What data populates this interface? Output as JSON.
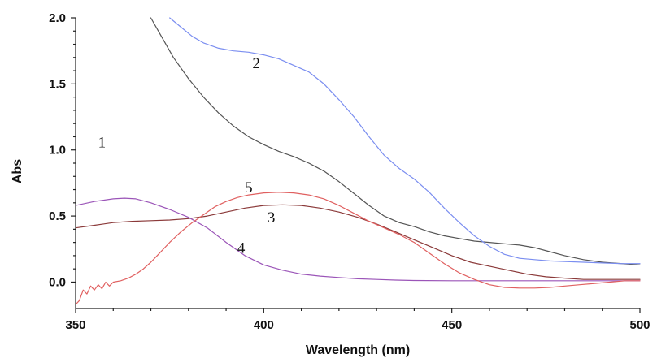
{
  "chart_data": {
    "type": "line",
    "title": "",
    "xlabel": "Wavelength (nm)",
    "ylabel": "Abs",
    "xlim": [
      350,
      500
    ],
    "ylim": [
      -0.2,
      2.0
    ],
    "x_ticks": [
      350,
      400,
      450,
      500
    ],
    "x_tick_labels": [
      "350",
      "400",
      "450",
      "500"
    ],
    "y_ticks": [
      0.0,
      0.5,
      1.0,
      1.5,
      2.0
    ],
    "y_tick_labels": [
      "0.0",
      "0.5",
      "1.0",
      "1.5",
      "2.0"
    ],
    "grid": false,
    "series": [
      {
        "name": "1",
        "color": "#555555",
        "label_at": [
          357,
          1.02
        ],
        "points": [
          [
            370,
            2.0
          ],
          [
            373,
            1.85
          ],
          [
            376,
            1.7
          ],
          [
            380,
            1.54
          ],
          [
            384,
            1.4
          ],
          [
            388,
            1.28
          ],
          [
            392,
            1.18
          ],
          [
            396,
            1.1
          ],
          [
            400,
            1.04
          ],
          [
            404,
            0.99
          ],
          [
            408,
            0.95
          ],
          [
            412,
            0.9
          ],
          [
            416,
            0.84
          ],
          [
            420,
            0.76
          ],
          [
            424,
            0.67
          ],
          [
            428,
            0.58
          ],
          [
            432,
            0.5
          ],
          [
            436,
            0.45
          ],
          [
            440,
            0.42
          ],
          [
            444,
            0.38
          ],
          [
            448,
            0.35
          ],
          [
            452,
            0.33
          ],
          [
            456,
            0.31
          ],
          [
            460,
            0.3
          ],
          [
            464,
            0.29
          ],
          [
            468,
            0.28
          ],
          [
            472,
            0.26
          ],
          [
            476,
            0.23
          ],
          [
            480,
            0.2
          ],
          [
            485,
            0.17
          ],
          [
            490,
            0.15
          ],
          [
            495,
            0.14
          ],
          [
            500,
            0.13
          ]
        ]
      },
      {
        "name": "2",
        "color": "#7b8ef0",
        "label_at": [
          398,
          1.62
        ],
        "points": [
          [
            375,
            2.0
          ],
          [
            378,
            1.93
          ],
          [
            381,
            1.86
          ],
          [
            384,
            1.81
          ],
          [
            388,
            1.77
          ],
          [
            392,
            1.75
          ],
          [
            396,
            1.74
          ],
          [
            400,
            1.72
          ],
          [
            404,
            1.69
          ],
          [
            408,
            1.64
          ],
          [
            412,
            1.59
          ],
          [
            416,
            1.5
          ],
          [
            420,
            1.38
          ],
          [
            424,
            1.25
          ],
          [
            428,
            1.1
          ],
          [
            432,
            0.96
          ],
          [
            436,
            0.86
          ],
          [
            440,
            0.78
          ],
          [
            444,
            0.68
          ],
          [
            448,
            0.56
          ],
          [
            452,
            0.45
          ],
          [
            456,
            0.35
          ],
          [
            460,
            0.27
          ],
          [
            464,
            0.21
          ],
          [
            468,
            0.18
          ],
          [
            472,
            0.17
          ],
          [
            476,
            0.16
          ],
          [
            480,
            0.155
          ],
          [
            485,
            0.15
          ],
          [
            490,
            0.145
          ],
          [
            495,
            0.14
          ],
          [
            500,
            0.14
          ]
        ]
      },
      {
        "name": "3",
        "color": "#8b3a3a",
        "label_at": [
          402,
          0.45
        ],
        "points": [
          [
            350,
            0.41
          ],
          [
            355,
            0.43
          ],
          [
            360,
            0.45
          ],
          [
            365,
            0.46
          ],
          [
            370,
            0.465
          ],
          [
            375,
            0.47
          ],
          [
            380,
            0.48
          ],
          [
            385,
            0.5
          ],
          [
            390,
            0.53
          ],
          [
            395,
            0.56
          ],
          [
            400,
            0.58
          ],
          [
            405,
            0.585
          ],
          [
            410,
            0.58
          ],
          [
            415,
            0.56
          ],
          [
            420,
            0.53
          ],
          [
            425,
            0.49
          ],
          [
            430,
            0.44
          ],
          [
            435,
            0.38
          ],
          [
            440,
            0.32
          ],
          [
            445,
            0.26
          ],
          [
            450,
            0.2
          ],
          [
            455,
            0.15
          ],
          [
            460,
            0.12
          ],
          [
            465,
            0.09
          ],
          [
            470,
            0.06
          ],
          [
            475,
            0.04
          ],
          [
            480,
            0.03
          ],
          [
            485,
            0.02
          ],
          [
            490,
            0.02
          ],
          [
            495,
            0.02
          ],
          [
            500,
            0.02
          ]
        ]
      },
      {
        "name": "4",
        "color": "#9b55b8",
        "label_at": [
          394,
          0.22
        ],
        "points": [
          [
            350,
            0.58
          ],
          [
            355,
            0.61
          ],
          [
            360,
            0.63
          ],
          [
            363,
            0.635
          ],
          [
            366,
            0.63
          ],
          [
            370,
            0.6
          ],
          [
            375,
            0.55
          ],
          [
            380,
            0.49
          ],
          [
            385,
            0.41
          ],
          [
            390,
            0.3
          ],
          [
            395,
            0.2
          ],
          [
            400,
            0.13
          ],
          [
            405,
            0.09
          ],
          [
            410,
            0.06
          ],
          [
            415,
            0.045
          ],
          [
            420,
            0.035
          ],
          [
            425,
            0.025
          ],
          [
            430,
            0.02
          ],
          [
            435,
            0.015
          ],
          [
            440,
            0.012
          ],
          [
            450,
            0.01
          ],
          [
            460,
            0.01
          ],
          [
            470,
            0.01
          ],
          [
            480,
            0.01
          ],
          [
            490,
            0.01
          ],
          [
            500,
            0.01
          ]
        ]
      },
      {
        "name": "5",
        "color": "#e06060",
        "label_at": [
          396,
          0.68
        ],
        "points": [
          [
            350,
            -0.17
          ],
          [
            351,
            -0.14
          ],
          [
            352,
            -0.06
          ],
          [
            353,
            -0.09
          ],
          [
            354,
            -0.03
          ],
          [
            355,
            -0.06
          ],
          [
            356,
            -0.02
          ],
          [
            357,
            -0.05
          ],
          [
            358,
            0.0
          ],
          [
            359,
            -0.03
          ],
          [
            360,
            0.0
          ],
          [
            362,
            0.01
          ],
          [
            364,
            0.03
          ],
          [
            366,
            0.06
          ],
          [
            368,
            0.1
          ],
          [
            370,
            0.15
          ],
          [
            372,
            0.21
          ],
          [
            375,
            0.3
          ],
          [
            378,
            0.38
          ],
          [
            381,
            0.45
          ],
          [
            384,
            0.51
          ],
          [
            387,
            0.57
          ],
          [
            390,
            0.61
          ],
          [
            393,
            0.64
          ],
          [
            396,
            0.66
          ],
          [
            400,
            0.675
          ],
          [
            404,
            0.68
          ],
          [
            408,
            0.675
          ],
          [
            412,
            0.66
          ],
          [
            416,
            0.63
          ],
          [
            420,
            0.58
          ],
          [
            424,
            0.52
          ],
          [
            428,
            0.46
          ],
          [
            432,
            0.41
          ],
          [
            436,
            0.36
          ],
          [
            440,
            0.3
          ],
          [
            444,
            0.22
          ],
          [
            448,
            0.14
          ],
          [
            452,
            0.07
          ],
          [
            456,
            0.02
          ],
          [
            460,
            -0.02
          ],
          [
            464,
            -0.04
          ],
          [
            468,
            -0.045
          ],
          [
            472,
            -0.045
          ],
          [
            476,
            -0.04
          ],
          [
            480,
            -0.03
          ],
          [
            484,
            -0.02
          ],
          [
            488,
            -0.01
          ],
          [
            492,
            0.0
          ],
          [
            496,
            0.01
          ],
          [
            500,
            0.01
          ]
        ]
      }
    ]
  }
}
